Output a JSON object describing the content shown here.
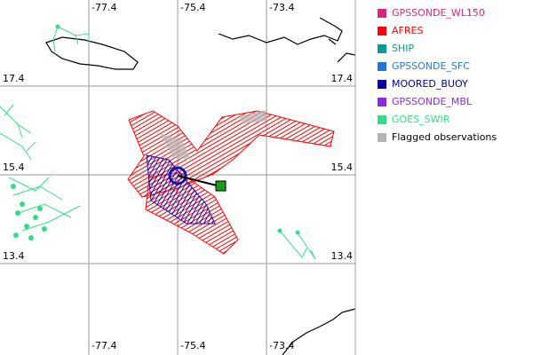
{
  "map": {
    "lon_labels": [
      "-77.4",
      "-75.4",
      "-73.4"
    ],
    "lat_labels": [
      "17.4",
      "15.4",
      "13.4"
    ]
  },
  "legend": [
    {
      "label": "GPSSONDE_WL150",
      "color": "#d6287f"
    },
    {
      "label": "AFRES",
      "color": "#ff0000"
    },
    {
      "label": "SHIP",
      "color": "#0a9a96"
    },
    {
      "label": "GPSSONDE_SFC",
      "color": "#2277d6"
    },
    {
      "label": "MOORED_BUOY",
      "color": "#0000a0"
    },
    {
      "label": "GPSSONDE_MBL",
      "color": "#8a2be2"
    },
    {
      "label": "GOES_SWIR",
      "color": "#33dd88"
    },
    {
      "label": "Flagged observations",
      "color": "#b4b4b4"
    }
  ]
}
